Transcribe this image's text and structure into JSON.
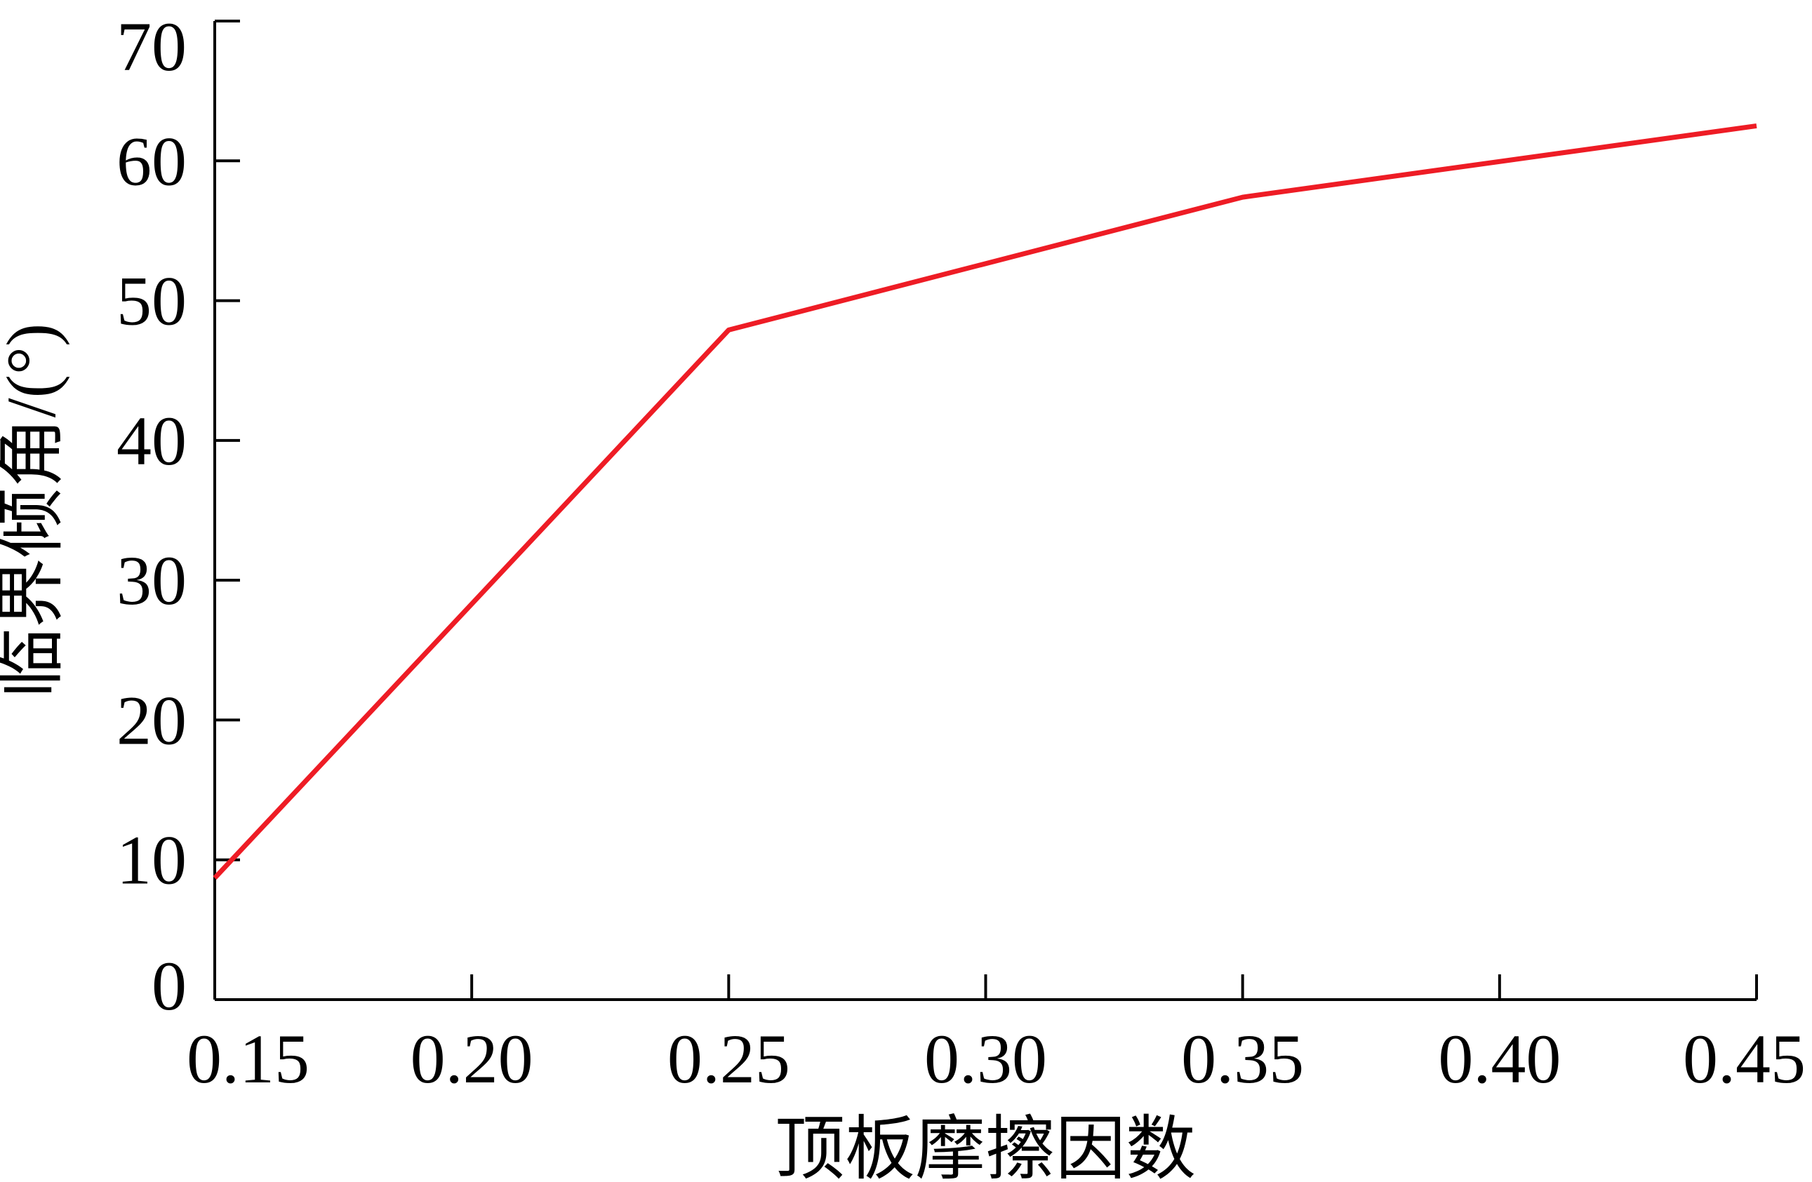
{
  "chart_data": {
    "type": "line",
    "title": "",
    "xlabel": "顶板摩擦因数",
    "ylabel": "临界倾角/(°)",
    "xlim": [
      0.15,
      0.45
    ],
    "ylim": [
      0,
      70
    ],
    "x_ticks": [
      "0.15",
      "0.20",
      "0.25",
      "0.30",
      "0.35",
      "0.40",
      "0.45"
    ],
    "y_ticks": [
      "0",
      "10",
      "20",
      "30",
      "40",
      "50",
      "60",
      "70"
    ],
    "grid": false,
    "series": [
      {
        "color": "#ee1c25",
        "x": [
          0.15,
          0.25,
          0.35,
          0.45
        ],
        "y": [
          8.7,
          47.9,
          57.4,
          62.5
        ]
      }
    ]
  }
}
